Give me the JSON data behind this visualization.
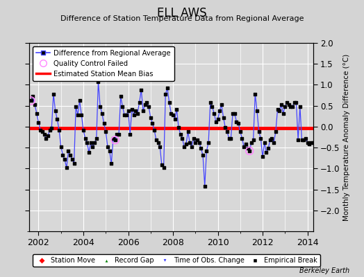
{
  "title": "ELL AWS",
  "subtitle": "Difference of Station Temperature Data from Regional Average",
  "ylabel": "Monthly Temperature Anomaly Difference (°C)",
  "xlim": [
    2001.58,
    2014.25
  ],
  "ylim": [
    -2.5,
    2.0
  ],
  "yticks": [
    -2.0,
    -1.5,
    -1.0,
    -0.5,
    0.0,
    0.5,
    1.0,
    1.5,
    2.0
  ],
  "xticks": [
    2002,
    2004,
    2006,
    2008,
    2010,
    2012,
    2014
  ],
  "mean_bias": -0.04,
  "line_color": "#4444ff",
  "line_color_light": "#aaaaff",
  "marker_color": "#000000",
  "bias_color": "#ff0000",
  "qc_color": "#ff88ff",
  "fig_background": "#d4d4d4",
  "plot_background": "#d8d8d8",
  "grid_color": "#ffffff",
  "watermark": "Berkeley Earth",
  "time_series": [
    0.62,
    0.72,
    0.52,
    0.32,
    0.1,
    -0.08,
    -0.12,
    -0.18,
    -0.28,
    -0.22,
    -0.08,
    -0.03,
    0.78,
    0.38,
    0.18,
    -0.08,
    -0.48,
    -0.68,
    -0.78,
    -0.98,
    -0.58,
    -0.68,
    -0.78,
    -0.88,
    0.48,
    0.28,
    0.62,
    0.28,
    -0.08,
    -0.28,
    -0.38,
    -0.62,
    -0.38,
    -0.48,
    -0.38,
    -0.28,
    1.08,
    0.48,
    0.32,
    0.08,
    -0.12,
    -0.48,
    -0.58,
    -0.88,
    -0.28,
    -0.32,
    -0.18,
    -0.18,
    0.72,
    0.48,
    0.28,
    0.28,
    0.38,
    -0.18,
    0.42,
    0.28,
    0.38,
    0.32,
    0.58,
    0.88,
    0.38,
    0.52,
    0.58,
    0.48,
    0.22,
    0.08,
    -0.08,
    -0.32,
    -0.38,
    -0.48,
    -0.92,
    -0.98,
    0.78,
    0.92,
    0.58,
    0.32,
    0.28,
    0.18,
    0.42,
    -0.02,
    -0.18,
    -0.28,
    -0.48,
    -0.42,
    -0.12,
    -0.38,
    -0.48,
    -0.28,
    -0.38,
    -0.32,
    -0.38,
    -0.52,
    -0.68,
    -1.42,
    -0.58,
    -0.38,
    0.58,
    0.48,
    0.32,
    0.12,
    0.18,
    0.38,
    0.52,
    0.22,
    -0.02,
    -0.12,
    -0.28,
    -0.28,
    0.32,
    0.32,
    0.12,
    0.08,
    -0.12,
    -0.28,
    -0.48,
    -0.42,
    -0.52,
    -0.58,
    -0.38,
    -0.32,
    0.78,
    0.38,
    -0.12,
    -0.28,
    -0.72,
    -0.38,
    -0.62,
    -0.52,
    -0.32,
    -0.28,
    -0.38,
    -0.12,
    0.42,
    0.38,
    0.52,
    0.32,
    0.48,
    0.58,
    0.52,
    0.48,
    0.48,
    0.58,
    0.58,
    -0.32,
    0.48,
    -0.32,
    -0.32,
    -0.28,
    -0.38,
    -0.42,
    -0.38,
    -0.38,
    -0.38,
    -0.38,
    -0.18,
    -0.42
  ],
  "qc_failed_indices": [
    0,
    45,
    117
  ],
  "start_year": 2001,
  "start_month": 9
}
